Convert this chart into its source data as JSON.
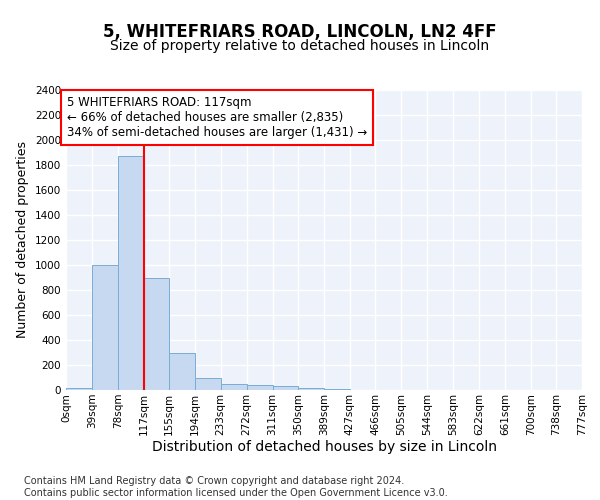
{
  "title": "5, WHITEFRIARS ROAD, LINCOLN, LN2 4FF",
  "subtitle": "Size of property relative to detached houses in Lincoln",
  "xlabel": "Distribution of detached houses by size in Lincoln",
  "ylabel": "Number of detached properties",
  "bar_color": "#c6d9f0",
  "bar_edgecolor": "#7aadd4",
  "vline_x": 117,
  "vline_color": "red",
  "annotation_text": "5 WHITEFRIARS ROAD: 117sqm\n← 66% of detached houses are smaller (2,835)\n34% of semi-detached houses are larger (1,431) →",
  "ylim": [
    0,
    2400
  ],
  "yticks": [
    0,
    200,
    400,
    600,
    800,
    1000,
    1200,
    1400,
    1600,
    1800,
    2000,
    2200,
    2400
  ],
  "bin_edges": [
    0,
    39,
    78,
    117,
    155,
    194,
    233,
    272,
    311,
    350,
    389,
    427,
    466,
    505,
    544,
    583,
    622,
    661,
    700,
    738,
    777
  ],
  "bin_labels": [
    "0sqm",
    "39sqm",
    "78sqm",
    "117sqm",
    "155sqm",
    "194sqm",
    "233sqm",
    "272sqm",
    "311sqm",
    "350sqm",
    "389sqm",
    "427sqm",
    "466sqm",
    "505sqm",
    "544sqm",
    "583sqm",
    "622sqm",
    "661sqm",
    "700sqm",
    "738sqm",
    "777sqm"
  ],
  "bar_heights": [
    20,
    1000,
    1870,
    900,
    300,
    100,
    50,
    40,
    30,
    15,
    5,
    3,
    2,
    1,
    1,
    0,
    0,
    0,
    0,
    0
  ],
  "footer_text": "Contains HM Land Registry data © Crown copyright and database right 2024.\nContains public sector information licensed under the Open Government Licence v3.0.",
  "background_color": "#eef2fb",
  "grid_color": "#ffffff",
  "title_fontsize": 12,
  "subtitle_fontsize": 10,
  "tick_fontsize": 7.5,
  "ylabel_fontsize": 9,
  "xlabel_fontsize": 10,
  "footer_fontsize": 7,
  "annotation_fontsize": 8.5
}
